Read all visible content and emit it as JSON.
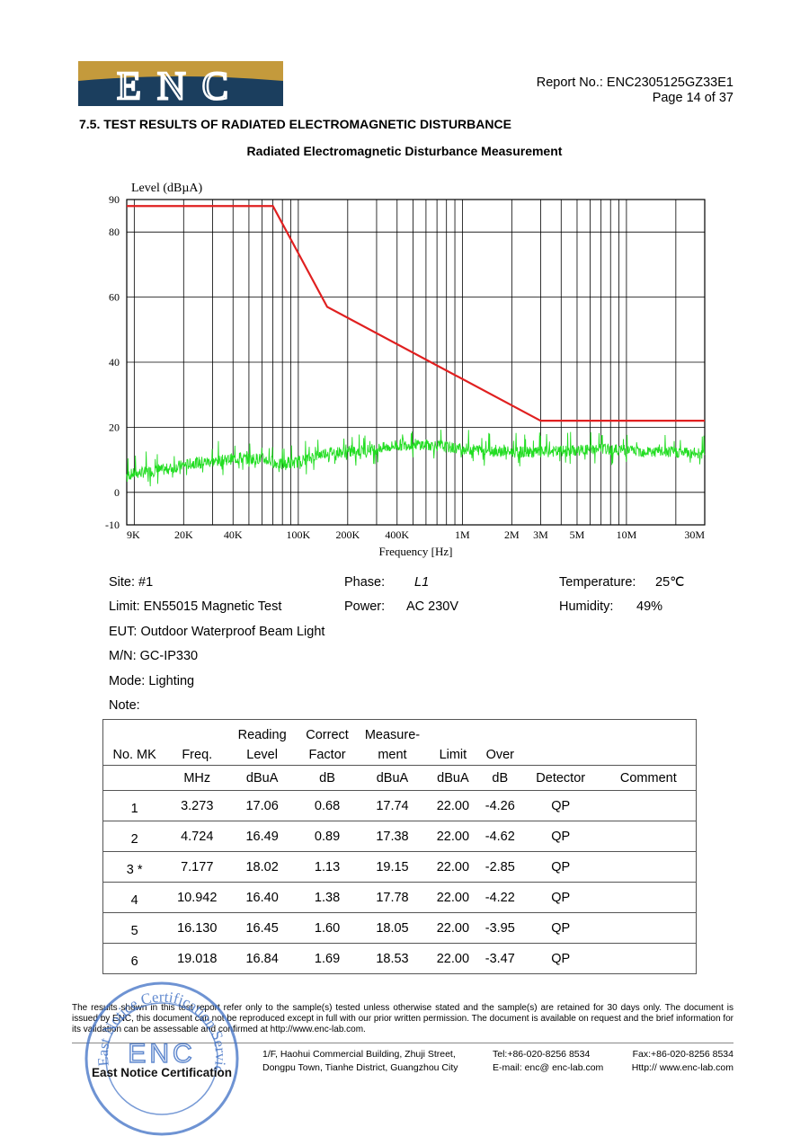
{
  "header": {
    "logo_text": "ENC",
    "report_no": "Report No.: ENC2305125GZ33E1",
    "page": "Page 14 of 37"
  },
  "section_title": "7.5. TEST RESULTS OF RADIATED ELECTROMAGNETIC DISTURBANCE",
  "chart_title": "Radiated Electromagnetic Disturbance Measurement",
  "chart_data": {
    "type": "line",
    "ylabel": "Level (dBµA)",
    "xlabel": "Frequency [Hz]",
    "x_scale": "log",
    "xlim": [
      9000,
      30000000
    ],
    "ylim": [
      -10,
      90
    ],
    "y_ticks": [
      90,
      80,
      60,
      40,
      20,
      0,
      -10
    ],
    "y_tick_labels": [
      "90",
      "80",
      "60",
      "40",
      "20",
      "0",
      "-10"
    ],
    "x_ticks": [
      9000,
      20000,
      40000,
      100000,
      200000,
      400000,
      1000000,
      2000000,
      3000000,
      5000000,
      10000000,
      30000000
    ],
    "x_tick_labels": [
      "9K",
      "20K",
      "40K",
      "100K",
      "200K",
      "400K",
      "1M",
      "2M",
      "3M",
      "5M",
      "10M",
      "30M"
    ],
    "grid": true,
    "series": [
      {
        "color": "#e02020",
        "x": [
          9000,
          70000,
          150000,
          3000000,
          30000000
        ],
        "y": [
          88,
          88,
          57,
          22,
          22
        ]
      },
      {
        "color": "#22dd22",
        "x": [
          9000,
          12000,
          15000,
          20000,
          25000,
          30000,
          40000,
          50000,
          60000,
          70000,
          80000,
          100000,
          130000,
          150000,
          200000,
          300000,
          400000,
          500000,
          700000,
          1000000,
          1500000,
          2000000,
          3000000,
          5000000,
          7000000,
          10000000,
          15000000,
          20000000,
          30000000
        ],
        "y": [
          5,
          6,
          6.5,
          8,
          9,
          9,
          10,
          10,
          10,
          9,
          8,
          9,
          11,
          12,
          12,
          13,
          14,
          14.5,
          14,
          13,
          12.5,
          12,
          12,
          12.5,
          13,
          12.5,
          12,
          12,
          11.5
        ]
      }
    ]
  },
  "info": {
    "site": "Site: #1",
    "phase_label": "Phase:",
    "phase_value": "L1",
    "temperature_label": "Temperature:",
    "temperature_value": "25℃",
    "limit": "Limit: EN55015 Magnetic Test",
    "power_label": "Power:",
    "power_value": "AC 230V",
    "humidity_label": "Humidity:",
    "humidity_value": "49%",
    "eut": "EUT: Outdoor Waterproof Beam Light",
    "mn": "M/N: GC-IP330",
    "mode": "Mode: Lighting",
    "note": "Note:"
  },
  "table": {
    "headers": [
      "No. MK",
      "Freq.",
      "Reading Level",
      "Correct Factor",
      "Measure- ment",
      "Limit",
      "Over",
      "",
      ""
    ],
    "header_line1": [
      "",
      "",
      "Reading",
      "Correct",
      "Measure-",
      "",
      "",
      "",
      ""
    ],
    "header_line2": [
      "No. MK",
      "Freq.",
      "Level",
      "Factor",
      "ment",
      "Limit",
      "Over",
      "",
      ""
    ],
    "units": [
      "",
      "MHz",
      "dBuA",
      "dB",
      "dBuA",
      "dBuA",
      "dB",
      "Detector",
      "Comment"
    ],
    "rows": [
      [
        "1",
        "3.273",
        "17.06",
        "0.68",
        "17.74",
        "22.00",
        "-4.26",
        "QP",
        ""
      ],
      [
        "2",
        "4.724",
        "16.49",
        "0.89",
        "17.38",
        "22.00",
        "-4.62",
        "QP",
        ""
      ],
      [
        "3 *",
        "7.177",
        "18.02",
        "1.13",
        "19.15",
        "22.00",
        "-2.85",
        "QP",
        ""
      ],
      [
        "4",
        "10.942",
        "16.40",
        "1.38",
        "17.78",
        "22.00",
        "-4.22",
        "QP",
        ""
      ],
      [
        "5",
        "16.130",
        "16.45",
        "1.60",
        "18.05",
        "22.00",
        "-3.95",
        "QP",
        ""
      ],
      [
        "6",
        "19.018",
        "16.84",
        "1.69",
        "18.53",
        "22.00",
        "-3.47",
        "QP",
        ""
      ]
    ]
  },
  "footer": {
    "disclaimer": "The results shown in this test report refer only to the sample(s) tested unless otherwise stated and the sample(s) are retained for 30 days only. The document is issued by ENC, this document can not be reproduced except in full with our prior written permission. The document is available on request and the brief information for its validation can be assessable and confirmed at http://www.enc-lab.com.",
    "stamp_arc": "East Notice Certification Service Co.,Ltd.",
    "stamp_center": "ENC",
    "stamp_label": "East Notice Certification",
    "address1": "1/F, Haohui Commercial Building, Zhuji Street,",
    "address2": "Dongpu Town, Tianhe District, Guangzhou City",
    "tel": "Tel:+86-020-8256 8534",
    "email": "E-mail: enc@ enc-lab.com",
    "fax": "Fax:+86-020-8256 8534",
    "http": "Http:// www.enc-lab.com"
  }
}
